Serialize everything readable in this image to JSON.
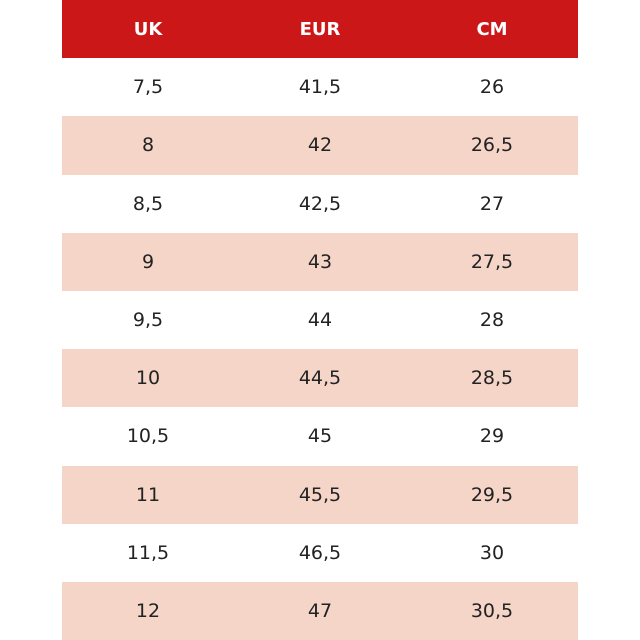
{
  "table": {
    "header": [
      "UK",
      "EUR",
      "CM"
    ],
    "rows": [
      [
        "7,5",
        "41,5",
        "26"
      ],
      [
        "8",
        "42",
        "26,5"
      ],
      [
        "8,5",
        "42,5",
        "27"
      ],
      [
        "9",
        "43",
        "27,5"
      ],
      [
        "9,5",
        "44",
        "28"
      ],
      [
        "10",
        "44,5",
        "28,5"
      ],
      [
        "10,5",
        "45",
        "29"
      ],
      [
        "11",
        "45,5",
        "29,5"
      ],
      [
        "11,5",
        "46,5",
        "30"
      ],
      [
        "12",
        "47",
        "30,5"
      ]
    ]
  }
}
